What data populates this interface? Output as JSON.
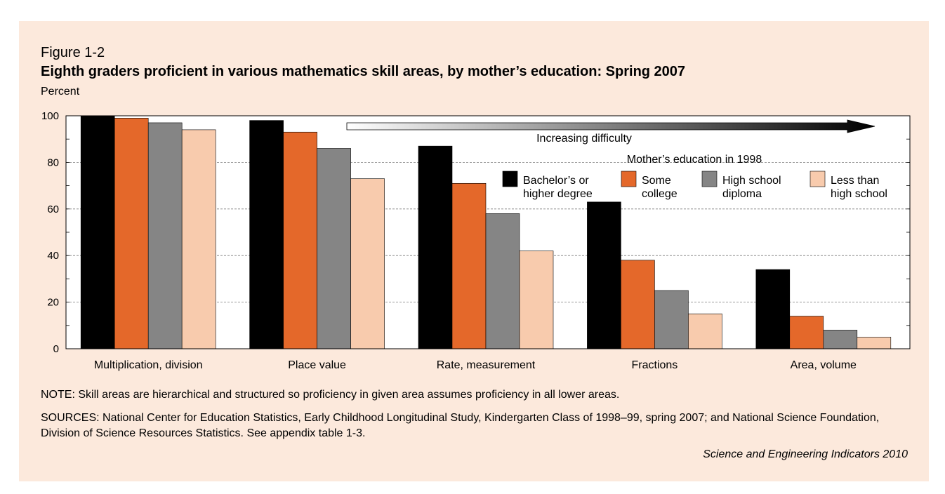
{
  "figure": {
    "label": "Figure 1-2",
    "title": "Eighth graders proficient in various mathematics skill areas, by mother’s education: Spring 2007",
    "note": "NOTE: Skill areas are hierarchical and structured so proficiency in given area assumes proficiency in all lower areas.",
    "sources": "SOURCES: National Center for Education Statistics, Early Childhood Longitudinal Study, Kindergarten Class of 1998–99, spring 2007; and National Science Foundation, Division of Science Resources Statistics. See appendix table 1-3.",
    "credit": "Science and Engineering Indicators 2010"
  },
  "chart_data": {
    "type": "bar",
    "ylabel": "Percent",
    "ylim": [
      0,
      100
    ],
    "yticks": [
      0,
      20,
      40,
      60,
      80,
      100
    ],
    "grid": "dashed horizontal at 20, 40, 60, 80",
    "categories": [
      "Multiplication, division",
      "Place value",
      "Rate, measurement",
      "Fractions",
      "Area, volume"
    ],
    "legend_title": "Mother’s education in 1998",
    "legend_placement": "top-right",
    "series": [
      {
        "name": "Bachelor’s or higher degree",
        "label_lines": [
          "Bachelor’s or",
          "higher degree"
        ],
        "color": "#000000",
        "values": [
          100,
          98,
          87,
          63,
          34
        ]
      },
      {
        "name": "Some college",
        "label_lines": [
          "Some",
          "college"
        ],
        "color": "#e4682a",
        "values": [
          99,
          93,
          71,
          38,
          14
        ]
      },
      {
        "name": "High school diploma",
        "label_lines": [
          "High school",
          "diploma"
        ],
        "color": "#858585",
        "values": [
          97,
          86,
          58,
          25,
          8
        ]
      },
      {
        "name": "Less than high school",
        "label_lines": [
          "Less than",
          "high school"
        ],
        "color": "#f8cbad",
        "values": [
          94,
          73,
          42,
          15,
          5
        ]
      }
    ],
    "annotation": "Increasing difficulty"
  }
}
